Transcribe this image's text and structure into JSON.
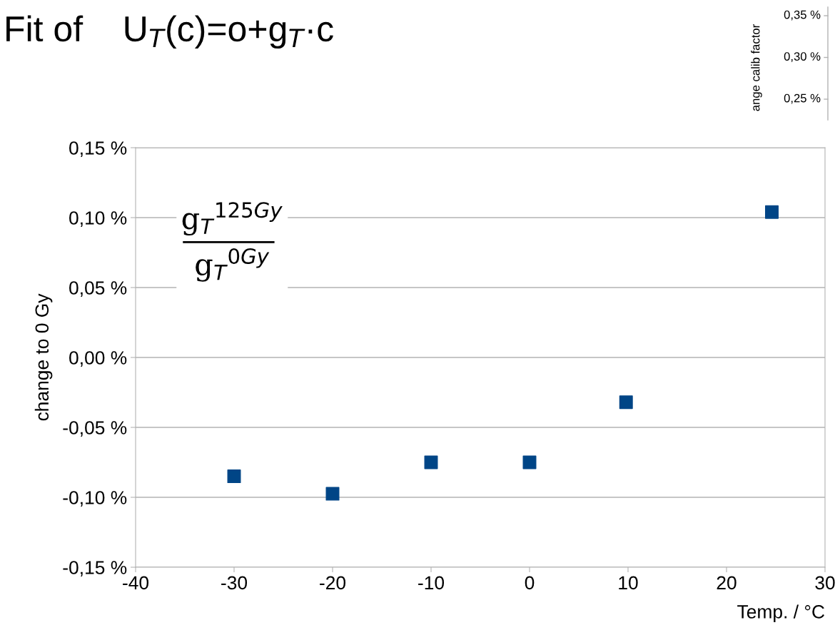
{
  "chart_data": [
    {
      "type": "scatter",
      "title": "Fit of    U$_{T}$(c)=o+g$_{T}$·c",
      "x": [
        -30,
        -20,
        -10,
        0,
        9.8,
        24.6
      ],
      "series": [
        {
          "color": "#004586",
          "values": [
            -0.085,
            -0.0975,
            -0.075,
            -0.075,
            -0.032,
            0.104
          ]
        }
      ],
      "xlim": [
        -40,
        30
      ],
      "xticks": [
        -40,
        -30,
        -20,
        -10,
        0,
        10,
        20,
        30
      ],
      "ylim": [
        -0.15,
        0.15
      ],
      "yticks": [
        {
          "value": -0.15,
          "label": "-0,15 %"
        },
        {
          "value": -0.1,
          "label": "-0,10 %"
        },
        {
          "value": -0.05,
          "label": "-0,05 %"
        },
        {
          "value": 0,
          "label": "0,00 %"
        },
        {
          "value": 0.05,
          "label": "0,05 %"
        },
        {
          "value": 0.1,
          "label": "0,10 %"
        },
        {
          "value": 0.15,
          "label": "0,15 %"
        }
      ],
      "xlabel": "Temp. / °C",
      "ylabel": "change to 0 Gy",
      "annotations": [
        "g$_{T}$$^{125Gy}$",
        "g$_{T}$$^{0Gy}$"
      ],
      "grid": "y",
      "marker": "square",
      "legend": false
    },
    {
      "type": "other",
      "ylabel": "ange calib factor",
      "annotations": [
        "0,35 %",
        "0,30 %",
        "0,25 %"
      ]
    }
  ]
}
